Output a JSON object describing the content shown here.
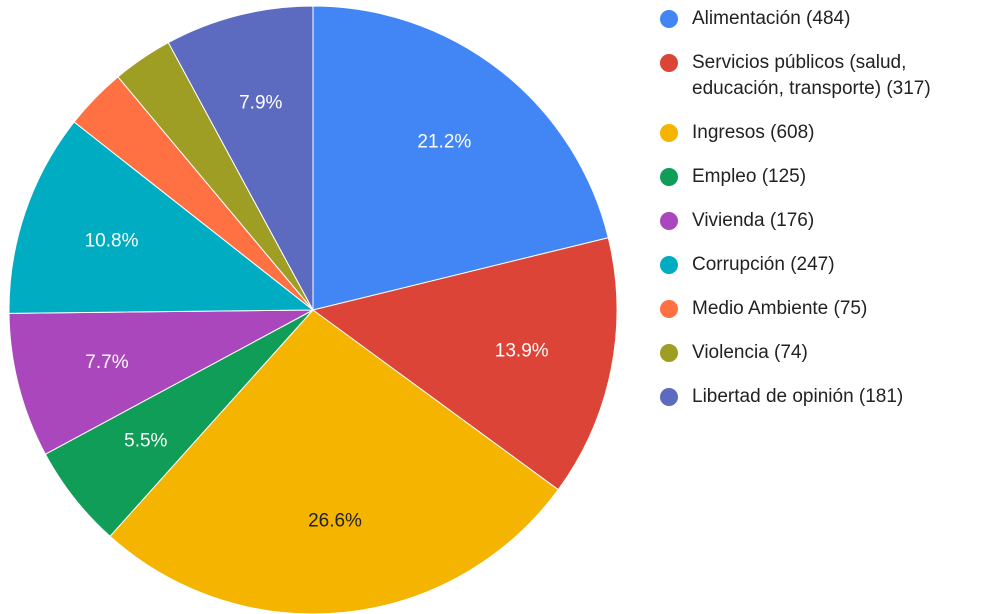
{
  "chart_data": {
    "type": "pie",
    "categories": [
      "Alimentación (484)",
      "Servicios públicos (salud, educación, transporte) (317)",
      "Ingresos (608)",
      "Empleo (125)",
      "Vivienda (176)",
      "Corrupción (247)",
      "Medio Ambiente (75)",
      "Violencia (74)",
      "Libertad de opinión (181)"
    ],
    "values": [
      21.2,
      13.9,
      26.6,
      5.5,
      7.7,
      10.8,
      3.3,
      3.2,
      7.9
    ],
    "value_labels": [
      "21.2%",
      "13.9%",
      "26.6%",
      "5.5%",
      "7.7%",
      "10.8%",
      null,
      null,
      "7.9%"
    ],
    "colors": [
      "#4285f4",
      "#db4437",
      "#f4b400",
      "#0f9d58",
      "#ab47bc",
      "#00acc1",
      "#ff7043",
      "#9e9d24",
      "#5c6bc0"
    ],
    "legend": "right"
  }
}
